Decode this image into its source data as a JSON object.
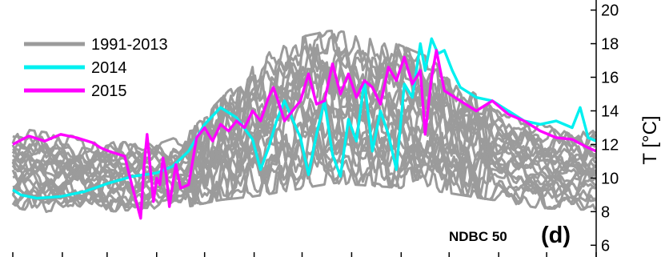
{
  "chart_data": {
    "type": "line",
    "ylabel": "T [°C]",
    "ylim": [
      5.3,
      20.6
    ],
    "yticks": [
      6,
      8,
      10,
      12,
      14,
      16,
      18,
      20
    ],
    "xlim": [
      0,
      365
    ],
    "xticks": [
      0,
      31,
      59,
      90,
      120,
      151,
      181,
      212,
      243,
      273,
      304,
      334,
      365
    ],
    "station_label": "NDBC 50",
    "panel_label": "(d)",
    "legend": {
      "position": "top-left",
      "entries": [
        "1991-2013",
        "2014",
        "2015"
      ]
    },
    "colors": {
      "1991-2013": "#9b9b9b",
      "2014": "#00f0f0",
      "2015": "#ff00ff"
    },
    "envelope_1991_2013": {
      "x": [
        0,
        30,
        60,
        90,
        110,
        130,
        150,
        170,
        200,
        230,
        260,
        280,
        300,
        330,
        365
      ],
      "upper": [
        12.8,
        12.4,
        12.0,
        11.8,
        12.5,
        14.5,
        16.5,
        18.0,
        18.6,
        18.2,
        17.0,
        15.5,
        14.0,
        13.0,
        12.6
      ],
      "lower": [
        8.5,
        8.2,
        8.3,
        8.5,
        8.6,
        9.0,
        9.2,
        9.5,
        10.0,
        9.8,
        9.6,
        9.3,
        9.0,
        8.5,
        8.4
      ]
    },
    "series": [
      {
        "name": "2014",
        "x": [
          0,
          5,
          15,
          30,
          45,
          60,
          75,
          90,
          100,
          110,
          120,
          130,
          140,
          150,
          155,
          160,
          165,
          170,
          180,
          185,
          190,
          195,
          200,
          205,
          210,
          215,
          220,
          225,
          230,
          235,
          240,
          245,
          250,
          255,
          258,
          262,
          266,
          270,
          275,
          280,
          290,
          300,
          310,
          320,
          330,
          340,
          350,
          355,
          360,
          365
        ],
        "y": [
          9.3,
          9.0,
          8.8,
          8.9,
          9.2,
          9.7,
          10.1,
          10.3,
          10.7,
          11.6,
          13.2,
          14.2,
          13.6,
          12.3,
          10.5,
          11.8,
          13.4,
          14.6,
          12.4,
          10.2,
          12.6,
          14.6,
          11.4,
          10.1,
          13.5,
          12.2,
          15.8,
          11.6,
          14.0,
          12.6,
          10.5,
          15.6,
          14.8,
          18.0,
          16.4,
          18.3,
          17.4,
          17.6,
          16.4,
          15.4,
          14.8,
          14.6,
          14.0,
          13.4,
          13.2,
          13.4,
          13.0,
          14.2,
          12.4,
          12.2
        ]
      },
      {
        "name": "2015",
        "x": [
          0,
          10,
          20,
          30,
          40,
          50,
          55,
          60,
          70,
          75,
          80,
          82,
          84,
          86,
          88,
          90,
          92,
          94,
          96,
          98,
          100,
          102,
          105,
          110,
          115,
          120,
          125,
          130,
          135,
          140,
          145,
          150,
          155,
          160,
          163,
          166,
          170,
          175,
          180,
          185,
          190,
          195,
          200,
          205,
          210,
          215,
          220,
          225,
          230,
          235,
          240,
          245,
          250,
          255,
          258,
          262,
          265,
          270,
          280,
          290,
          300,
          310,
          320,
          330,
          340,
          350,
          360,
          365
        ],
        "y": [
          12.0,
          12.5,
          12.2,
          12.6,
          12.4,
          12.1,
          11.8,
          11.6,
          11.3,
          9.4,
          7.6,
          10.6,
          12.6,
          10.6,
          8.6,
          10.0,
          9.6,
          11.2,
          10.2,
          8.3,
          9.6,
          10.8,
          9.4,
          9.6,
          12.4,
          13.0,
          12.2,
          13.2,
          12.8,
          13.4,
          13.0,
          14.0,
          13.4,
          14.8,
          15.4,
          14.6,
          13.4,
          14.0,
          14.6,
          16.2,
          14.4,
          14.6,
          16.8,
          15.0,
          16.2,
          14.8,
          15.8,
          15.4,
          14.4,
          16.6,
          15.8,
          17.2,
          15.6,
          16.4,
          12.6,
          16.0,
          17.6,
          15.2,
          14.6,
          14.0,
          14.6,
          13.8,
          13.4,
          12.8,
          12.4,
          12.3,
          11.8,
          11.6
        ]
      }
    ]
  }
}
